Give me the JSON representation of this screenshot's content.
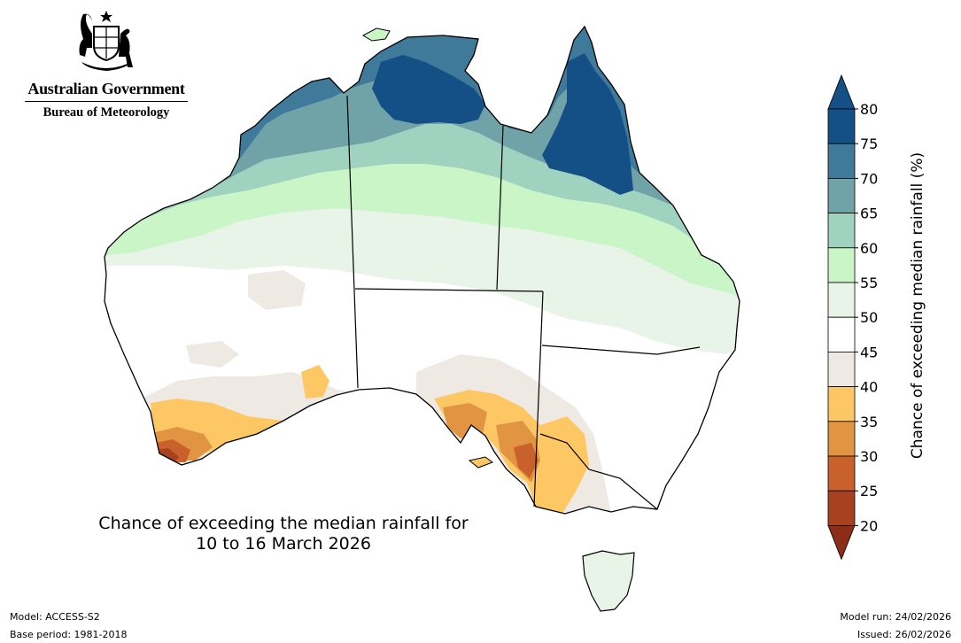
{
  "header": {
    "government": "Australian Government",
    "agency": "Bureau of Meteorology"
  },
  "map": {
    "title_line1": "Chance of exceeding the median rainfall for",
    "title_line2": "10 to 16 March 2026",
    "region": "Australia"
  },
  "colorbar": {
    "label": "Chance of exceeding median rainfall (%)",
    "ticks": [
      "80",
      "75",
      "70",
      "65",
      "60",
      "55",
      "50",
      "45",
      "40",
      "35",
      "30",
      "25",
      "20"
    ],
    "colors": {
      "gt80": "#144f86",
      "75-80": "#144f86",
      "70-75": "#3f7a9a",
      "65-70": "#6fa3a8",
      "60-65": "#9fd3bf",
      "55-60": "#c9f5c7",
      "50-55": "#e9f4e9",
      "45-50": "#ffffff",
      "40-45": "#efe9e4",
      "35-40": "#fdc864",
      "30-35": "#e19543",
      "25-30": "#c8612b",
      "20-25": "#a8411f",
      "lt20": "#8b2d17"
    }
  },
  "footer": {
    "model": "Model: ACCESS-S2",
    "base_period": "Base period: 1981-2018",
    "model_run": "Model run: 24/02/2026",
    "issued": "Issued: 26/02/2026"
  }
}
